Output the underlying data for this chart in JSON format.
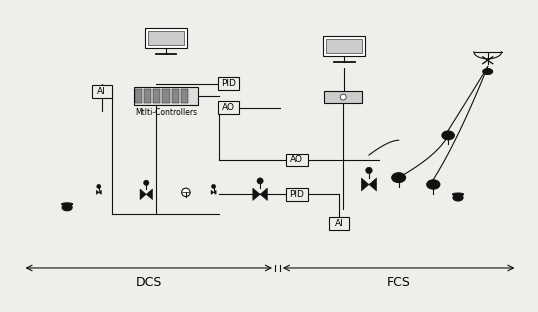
{
  "bg_color": "#f0eeea",
  "title": "",
  "dcs_label": "DCS",
  "fcs_label": "FCS",
  "ai_label": "AI",
  "ao_label": "AO",
  "pid_label": "PID",
  "multi_ctrl_label": "Mtlti-Controllers"
}
